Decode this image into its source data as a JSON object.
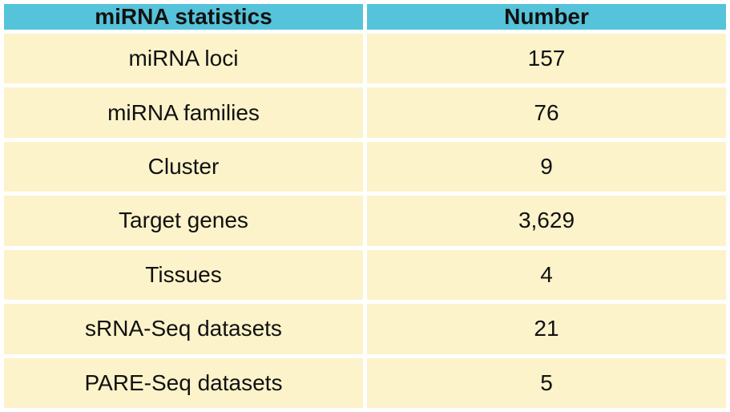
{
  "colors": {
    "header_bg": "#55c3da",
    "row_bg": "#fcf3ca",
    "text": "#111111",
    "page_bg": "#ffffff"
  },
  "table": {
    "headers": [
      "miRNA statistics",
      "Number"
    ],
    "rows": [
      {
        "label": "miRNA loci",
        "value": "157"
      },
      {
        "label": "miRNA families",
        "value": "76"
      },
      {
        "label": "Cluster",
        "value": "9"
      },
      {
        "label": "Target genes",
        "value": "3,629"
      },
      {
        "label": "Tissues",
        "value": "4"
      },
      {
        "label": "sRNA-Seq datasets",
        "value": "21"
      },
      {
        "label": "PARE-Seq datasets",
        "value": "5"
      }
    ]
  },
  "chart_data": {
    "type": "table",
    "title": "miRNA statistics",
    "columns": [
      "miRNA statistics",
      "Number"
    ],
    "rows": [
      [
        "miRNA loci",
        157
      ],
      [
        "miRNA families",
        76
      ],
      [
        "Cluster",
        9
      ],
      [
        "Target genes",
        3629
      ],
      [
        "Tissues",
        4
      ],
      [
        "sRNA-Seq datasets",
        21
      ],
      [
        "PARE-Seq datasets",
        5
      ]
    ]
  }
}
